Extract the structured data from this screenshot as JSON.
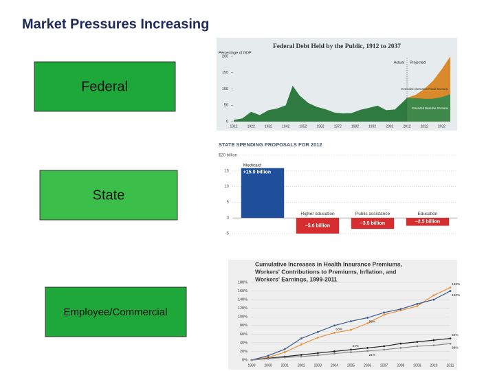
{
  "slide": {
    "title": "Market Pressures Increasing",
    "boxes": [
      "Federal",
      "State",
      "Employee/Commercial"
    ]
  },
  "chart_data": [
    {
      "type": "area",
      "title": "Federal Debt Held by the Public, 1912 to 2037",
      "ylabel": "Percentage of GDP",
      "x": [
        1912,
        1917,
        1922,
        1927,
        1932,
        1937,
        1942,
        1946,
        1950,
        1955,
        1960,
        1965,
        1970,
        1975,
        1980,
        1985,
        1990,
        1995,
        2000,
        2005,
        2010,
        2012,
        2017,
        2022,
        2027,
        2032,
        2037
      ],
      "series": [
        {
          "name": "Extended Alternative Fiscal Scenario",
          "color": "#d98b2b",
          "values": [
            null,
            null,
            null,
            null,
            null,
            null,
            null,
            null,
            null,
            null,
            null,
            null,
            null,
            null,
            null,
            null,
            null,
            null,
            null,
            null,
            null,
            73,
            82,
            100,
            125,
            160,
            200
          ]
        },
        {
          "name": "Extended Baseline Scenario",
          "color": "#3f8a4a",
          "values": [
            null,
            null,
            null,
            null,
            null,
            null,
            null,
            null,
            null,
            null,
            null,
            null,
            null,
            null,
            null,
            null,
            null,
            null,
            null,
            null,
            null,
            73,
            72,
            70,
            70,
            75,
            84
          ]
        },
        {
          "name": "Actual",
          "color": "#2f7a3e",
          "values": [
            5,
            10,
            30,
            20,
            35,
            40,
            50,
            110,
            80,
            57,
            45,
            38,
            28,
            25,
            26,
            36,
            42,
            49,
            35,
            37,
            62,
            73,
            null,
            null,
            null,
            null,
            null
          ]
        }
      ],
      "annotations": [
        "Projected"
      ],
      "xlim": [
        1912,
        2037
      ],
      "xticks": [
        1912,
        1922,
        1932,
        1942,
        1952,
        1962,
        1972,
        1982,
        1992,
        2002,
        2012,
        2022,
        2032
      ],
      "ylim": [
        0,
        200
      ],
      "yticks": [
        0,
        50,
        100,
        150,
        200
      ]
    },
    {
      "type": "bar",
      "title": "STATE SPENDING PROPOSALS FOR 2012",
      "categories": [
        "Medicaid",
        "Higher education",
        "Public assistance",
        "Education"
      ],
      "values": [
        15.9,
        -5.0,
        -3.5,
        -2.5
      ],
      "value_labels": [
        "+15.9 billion",
        "–5.0 billion",
        "–3.5 billion",
        "–2.5 billion"
      ],
      "colors": [
        "#1f4e9b",
        "#d62e2e",
        "#d62e2e",
        "#d62e2e"
      ],
      "ylim": [
        -5,
        20
      ],
      "yticks": [
        {
          "value": 20,
          "label": "$20 billion"
        },
        15,
        10,
        5,
        0,
        -5
      ],
      "grid": true
    },
    {
      "type": "line",
      "title": [
        "Cumulative Increases in Health Insurance Premiums,",
        "Workers' Contributions to Premiums, Inflation, and",
        "Workers' Earnings, 1999-2011"
      ],
      "categories": [
        "1999",
        "2000",
        "2001",
        "2002",
        "2003",
        "2004",
        "2005",
        "2006",
        "2007",
        "2008",
        "2009",
        "2010",
        "2011"
      ],
      "series": [
        {
          "color": "#e8913a",
          "values": [
            0,
            6,
            18,
            36,
            52,
            63,
            70,
            85,
            105,
            115,
            125,
            150,
            168
          ],
          "value_labels": [
            null,
            null,
            null,
            null,
            null,
            "63%",
            null,
            null,
            null,
            null,
            null,
            null,
            "168%"
          ]
        },
        {
          "color": "#3a5a8c",
          "values": [
            0,
            10,
            25,
            50,
            65,
            80,
            90,
            98,
            110,
            118,
            130,
            140,
            160
          ],
          "value_labels": [
            null,
            null,
            null,
            null,
            null,
            null,
            null,
            "98%",
            null,
            null,
            null,
            null,
            "160%"
          ]
        },
        {
          "color": "#222222",
          "values": [
            0,
            4,
            8,
            12,
            16,
            20,
            24,
            28,
            32,
            38,
            42,
            46,
            50
          ],
          "value_labels": [
            null,
            null,
            null,
            null,
            null,
            null,
            "24%",
            null,
            null,
            null,
            null,
            null,
            "50%"
          ]
        },
        {
          "color": "#8a8a8a",
          "values": [
            0,
            3,
            6,
            8,
            11,
            15,
            18,
            21,
            24,
            28,
            32,
            34,
            38
          ],
          "value_labels": [
            null,
            null,
            null,
            null,
            null,
            null,
            null,
            "21%",
            null,
            null,
            null,
            null,
            "38%"
          ]
        }
      ],
      "ylim": [
        0,
        180
      ],
      "yticks": [
        {
          "value": 0,
          "label": "0%"
        },
        {
          "value": 20,
          "label": "20%"
        },
        {
          "value": 40,
          "label": "40%"
        },
        {
          "value": 60,
          "label": "60%"
        },
        {
          "value": 80,
          "label": "80%"
        },
        {
          "value": 100,
          "label": "100%"
        },
        {
          "value": 120,
          "label": "120%"
        },
        {
          "value": 140,
          "label": "140%"
        },
        {
          "value": 160,
          "label": "160%"
        },
        {
          "value": 180,
          "label": "180%"
        }
      ],
      "grid": true
    }
  ]
}
